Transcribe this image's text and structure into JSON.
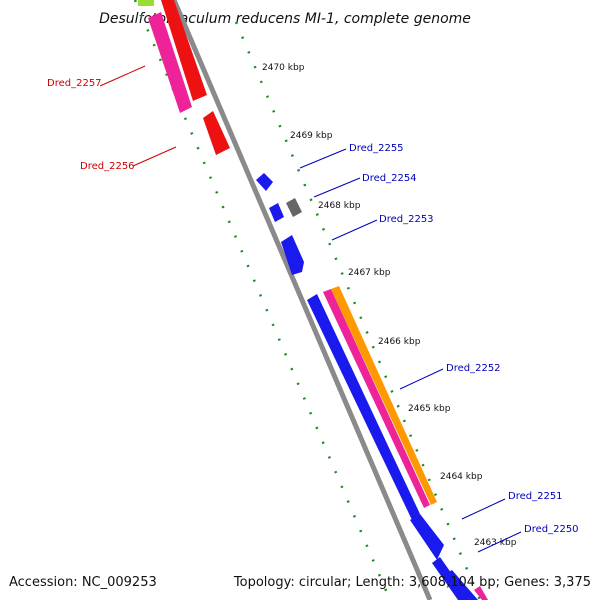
{
  "title": "Desulfotomaculum reducens MI-1, complete genome",
  "footer": {
    "accession": "Accession: NC_009253",
    "summary": "Topology: circular; Length: 3,608,104 bp; Genes: 3,375"
  },
  "ticks": [
    "2470 kbp",
    "2469 kbp",
    "2468 kbp",
    "2467 kbp",
    "2466 kbp",
    "2465 kbp",
    "2464 kbp",
    "2463 kbp"
  ],
  "gene_labels": {
    "left": [
      "Dred_2257",
      "Dred_2256"
    ],
    "right": [
      "Dred_2255",
      "Dred_2254",
      "Dred_2253",
      "Dred_2252",
      "Dred_2251",
      "Dred_2250"
    ]
  },
  "colors": {
    "backbone": "#8a8a8a",
    "forward_cds": "#1a1aee",
    "reverse_cds": "#ee1111",
    "pink_track": "#ee2299",
    "orange_track": "#ff9900",
    "other_feature": "#666666",
    "gc_skew": "#1f8a1f",
    "left_label": "#cc0000",
    "right_label": "#0000bb"
  }
}
